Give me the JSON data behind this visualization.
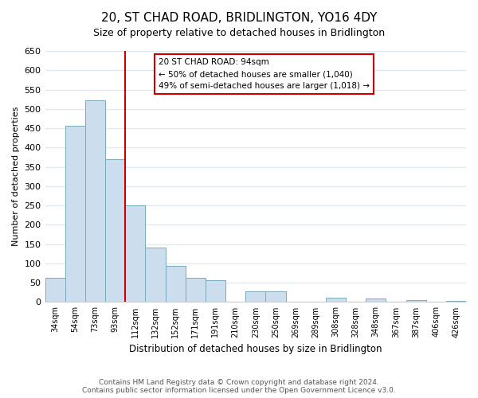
{
  "title": "20, ST CHAD ROAD, BRIDLINGTON, YO16 4DY",
  "subtitle": "Size of property relative to detached houses in Bridlington",
  "xlabel": "Distribution of detached houses by size in Bridlington",
  "ylabel": "Number of detached properties",
  "bar_labels": [
    "34sqm",
    "54sqm",
    "73sqm",
    "93sqm",
    "112sqm",
    "132sqm",
    "152sqm",
    "171sqm",
    "191sqm",
    "210sqm",
    "230sqm",
    "250sqm",
    "269sqm",
    "289sqm",
    "308sqm",
    "328sqm",
    "348sqm",
    "367sqm",
    "387sqm",
    "406sqm",
    "426sqm"
  ],
  "bar_values": [
    62,
    457,
    522,
    370,
    250,
    142,
    93,
    62,
    57,
    0,
    28,
    28,
    0,
    0,
    12,
    0,
    10,
    0,
    5,
    0,
    2
  ],
  "bar_color": "#ccdded",
  "bar_edge_color": "#7aaabb",
  "vline_x": 3.5,
  "vline_color": "#cc0000",
  "annotation_text": "20 ST CHAD ROAD: 94sqm\n← 50% of detached houses are smaller (1,040)\n49% of semi-detached houses are larger (1,018) →",
  "annotation_box_color": "#ffffff",
  "annotation_box_edge": "#cc0000",
  "ylim": [
    0,
    650
  ],
  "yticks": [
    0,
    50,
    100,
    150,
    200,
    250,
    300,
    350,
    400,
    450,
    500,
    550,
    600,
    650
  ],
  "footer_text": "Contains HM Land Registry data © Crown copyright and database right 2024.\nContains public sector information licensed under the Open Government Licence v3.0.",
  "bg_color": "#ffffff",
  "plot_bg_color": "#ffffff",
  "grid_color": "#e0e8f0"
}
